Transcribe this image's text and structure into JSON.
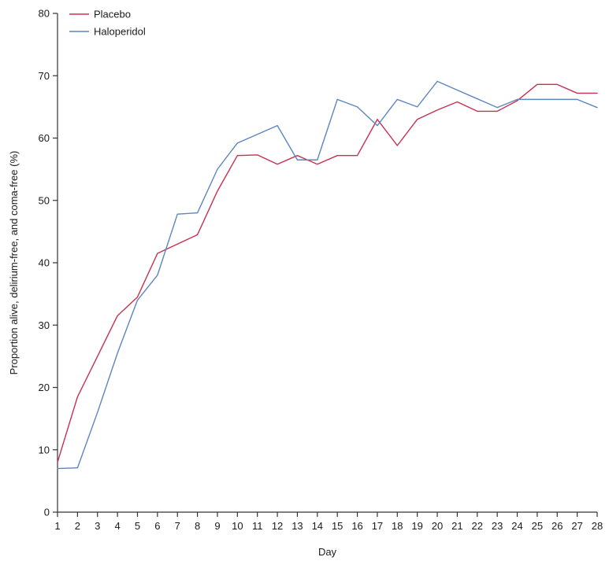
{
  "chart_data": {
    "type": "line",
    "title": "",
    "xlabel": "Day",
    "ylabel": "Proportion alive, delirium-free, and coma-free (%)",
    "x": [
      1,
      2,
      3,
      4,
      5,
      6,
      7,
      8,
      9,
      10,
      11,
      12,
      13,
      14,
      15,
      16,
      17,
      18,
      19,
      20,
      21,
      22,
      23,
      24,
      25,
      26,
      27,
      28
    ],
    "xlim": [
      1,
      28
    ],
    "ylim": [
      0,
      80
    ],
    "yticks": [
      0,
      10,
      20,
      30,
      40,
      50,
      60,
      70,
      80
    ],
    "grid": false,
    "legend_position": "top-left",
    "series": [
      {
        "name": "Placebo",
        "color": "#c8304f",
        "values": [
          8,
          18.5,
          25,
          31.5,
          34.5,
          41.5,
          43,
          44.5,
          51.5,
          57.2,
          57.3,
          55.8,
          57.2,
          55.8,
          57.2,
          57.2,
          63,
          58.8,
          63,
          64.5,
          65.8,
          64.3,
          64.3,
          66,
          68.6,
          68.6,
          67.2,
          67.2
        ]
      },
      {
        "name": "Haloperidol",
        "color": "#5b86c0",
        "values": [
          7,
          7.1,
          16,
          25.5,
          34,
          38,
          47.8,
          48,
          55,
          59.2,
          60.6,
          62,
          56.5,
          56.5,
          66.2,
          65,
          62,
          66.2,
          65,
          69.1,
          67.7,
          66.3,
          64.9,
          66.2,
          66.2,
          66.2,
          66.2,
          64.9
        ]
      }
    ]
  }
}
